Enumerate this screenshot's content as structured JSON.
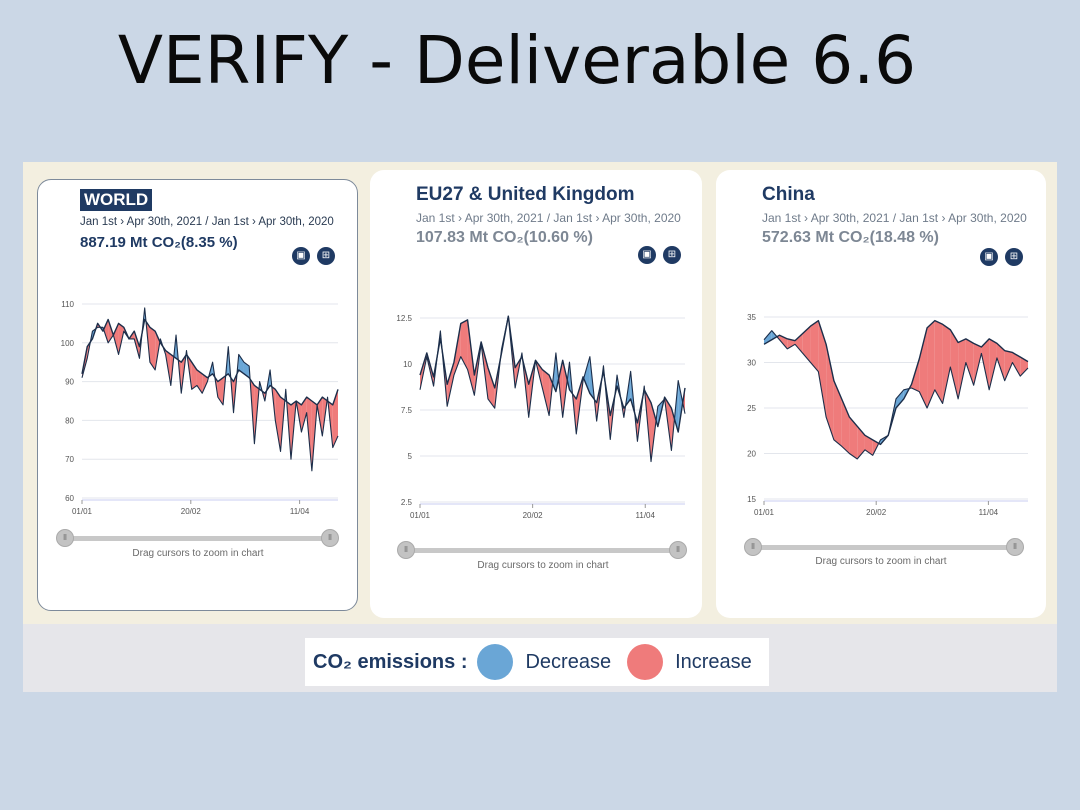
{
  "slide": {
    "title": "VERIFY - Deliverable 6.6"
  },
  "colors": {
    "decrease": "#6aa6d6",
    "increase": "#ef7b7b",
    "line": "#1c2e4a",
    "navy": "#1f3a63"
  },
  "legend": {
    "title": "CO₂ emissions :",
    "decrease": "Decrease",
    "increase": "Increase"
  },
  "zoom_hint": "Drag cursors to zoom in chart",
  "chart_data": [
    {
      "type": "area",
      "region": "WORLD",
      "period": "Jan 1st › Apr 30th, 2021 / Jan 1st › Apr 30th, 2020",
      "total": "887.19 Mt CO₂(8.35 %)",
      "x_ticks": [
        "01/01",
        "20/02",
        "11/04"
      ],
      "y_ticks": [
        "60",
        "70",
        "80",
        "90",
        "100",
        "110"
      ],
      "ylim": [
        60,
        110
      ],
      "series": [
        {
          "name": "2021",
          "values": [
            92,
            99,
            101,
            105,
            103,
            106,
            102,
            105,
            104,
            101,
            103,
            99,
            106,
            104,
            103,
            100,
            98,
            97,
            96,
            95,
            97,
            95,
            93,
            92,
            91,
            92,
            90,
            91,
            92,
            90,
            93,
            92,
            91,
            89,
            88,
            87,
            89,
            88,
            86,
            85,
            84,
            85,
            84,
            86,
            85,
            84,
            86,
            85,
            84,
            88
          ]
        },
        {
          "name": "2020",
          "values": [
            91,
            96,
            103,
            104,
            104,
            100,
            102,
            97,
            103,
            101,
            101,
            96,
            109,
            95,
            93,
            101,
            97,
            89,
            102,
            87,
            98,
            88,
            89,
            87,
            90,
            95,
            86,
            84,
            99,
            82,
            97,
            95,
            94,
            74,
            90,
            85,
            93,
            80,
            72,
            88,
            70,
            85,
            77,
            82,
            67,
            84,
            76,
            86,
            73,
            76
          ]
        }
      ]
    },
    {
      "type": "area",
      "region": "EU27 & United Kingdom",
      "period": "Jan 1st › Apr 30th, 2021 / Jan 1st › Apr 30th, 2020",
      "total": "107.83 Mt CO₂(10.60 %)",
      "x_ticks": [
        "01/01",
        "20/02",
        "11/04"
      ],
      "y_ticks": [
        "2.5",
        "5",
        "7.5",
        "10",
        "12.5"
      ],
      "ylim": [
        2.5,
        12.5
      ],
      "series": [
        {
          "name": "2021",
          "values": [
            9.4,
            10.6,
            9.3,
            11.4,
            8.9,
            10.1,
            12.2,
            12.4,
            9.4,
            11.2,
            9.8,
            8.7,
            10.6,
            12.6,
            9.8,
            10.4,
            8.9,
            10.2,
            9.7,
            9.4,
            8.5,
            10.2,
            8.6,
            8.1,
            9.3,
            8.4,
            7.9,
            9.6,
            7.2,
            8.8,
            7.6,
            8.1,
            6.8,
            8.6,
            7.9,
            6.6,
            8.2,
            7.6,
            6.3,
            8.7
          ]
        },
        {
          "name": "2020",
          "values": [
            8.6,
            10.4,
            8.8,
            11.8,
            7.7,
            9.4,
            10.4,
            9.7,
            8.3,
            11.1,
            8.1,
            7.6,
            10.8,
            12.6,
            8.7,
            10.6,
            7.1,
            10.2,
            8.7,
            7.2,
            10.6,
            7.1,
            10.1,
            6.2,
            9.1,
            10.4,
            6.9,
            9.9,
            5.9,
            9.4,
            7.1,
            9.6,
            5.8,
            8.8,
            4.7,
            7.7,
            8.1,
            5.3,
            9.1,
            7.3
          ]
        }
      ]
    },
    {
      "type": "area",
      "region": "China",
      "period": "Jan 1st › Apr 30th, 2021 / Jan 1st › Apr 30th, 2020",
      "total": "572.63 Mt CO₂(18.48 %)",
      "x_ticks": [
        "01/01",
        "20/02",
        "11/04"
      ],
      "y_ticks": [
        "15",
        "20",
        "25",
        "30",
        "35"
      ],
      "ylim": [
        15,
        35
      ],
      "series": [
        {
          "name": "2021",
          "values": [
            32,
            32.5,
            33,
            32.6,
            32.4,
            33.2,
            34,
            34.6,
            32,
            28,
            26,
            24,
            23,
            22,
            21.5,
            21,
            22,
            25,
            26,
            27.6,
            30.4,
            33.8,
            34.6,
            34.2,
            33.6,
            32.2,
            32.6,
            32.1,
            31.7,
            32.6,
            32.1,
            31.3,
            31.1,
            30.6,
            30.1
          ]
        },
        {
          "name": "2020",
          "values": [
            32.5,
            33.5,
            32.5,
            31.5,
            32,
            31,
            30,
            29,
            24,
            21.5,
            20.8,
            20,
            19.4,
            20.4,
            19.8,
            21.5,
            22,
            26,
            27,
            27.2,
            26.8,
            25,
            27,
            25.5,
            29.5,
            26,
            30,
            27.5,
            31,
            27,
            30.5,
            28,
            30,
            28.5,
            29.4
          ]
        }
      ]
    }
  ]
}
